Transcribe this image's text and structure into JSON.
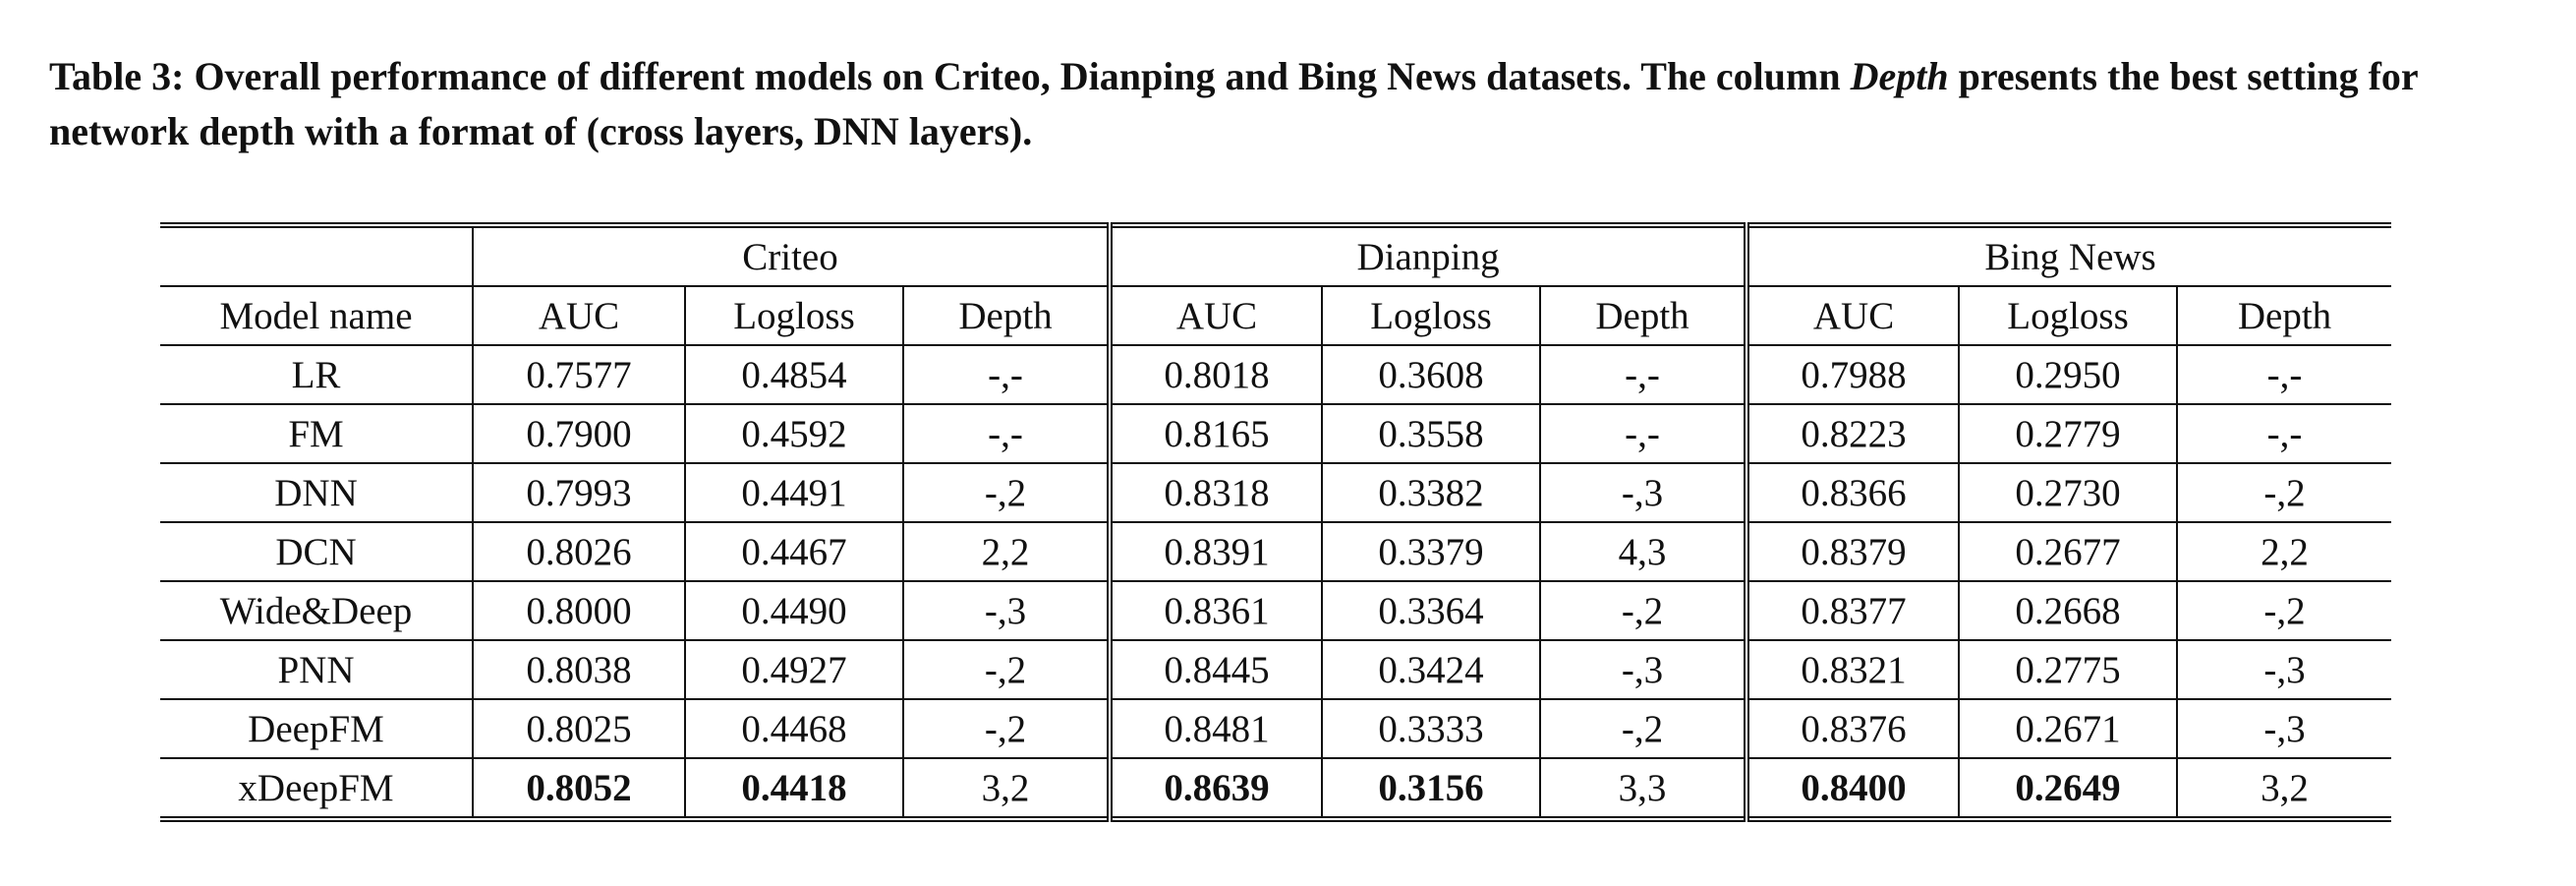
{
  "caption": {
    "prefix": "Table 3: Overall performance of different models on Criteo, Dianping and Bing News datasets. The column ",
    "emph": "Depth",
    "suffix": " presents the best setting for network depth with a format of (cross layers, DNN layers)."
  },
  "table": {
    "datasets": [
      "Criteo",
      "Dianping",
      "Bing News"
    ],
    "model_header": "Model name",
    "metric_headers": [
      "AUC",
      "Logloss",
      "Depth"
    ],
    "rows": [
      {
        "model": "LR",
        "criteo": [
          "0.7577",
          "0.4854",
          "-,-"
        ],
        "dianping": [
          "0.8018",
          "0.3608",
          "-,-"
        ],
        "bing": [
          "0.7988",
          "0.2950",
          "-,-"
        ]
      },
      {
        "model": "FM",
        "criteo": [
          "0.7900",
          "0.4592",
          "-,-"
        ],
        "dianping": [
          "0.8165",
          "0.3558",
          "-,-"
        ],
        "bing": [
          "0.8223",
          "0.2779",
          "-,-"
        ]
      },
      {
        "model": "DNN",
        "criteo": [
          "0.7993",
          "0.4491",
          "-,2"
        ],
        "dianping": [
          "0.8318",
          "0.3382",
          "-,3"
        ],
        "bing": [
          "0.8366",
          "0.2730",
          "-,2"
        ]
      },
      {
        "model": "DCN",
        "criteo": [
          "0.8026",
          "0.4467",
          "2,2"
        ],
        "dianping": [
          "0.8391",
          "0.3379",
          "4,3"
        ],
        "bing": [
          "0.8379",
          "0.2677",
          "2,2"
        ]
      },
      {
        "model": "Wide&Deep",
        "criteo": [
          "0.8000",
          "0.4490",
          "-,3"
        ],
        "dianping": [
          "0.8361",
          "0.3364",
          "-,2"
        ],
        "bing": [
          "0.8377",
          "0.2668",
          "-,2"
        ]
      },
      {
        "model": "PNN",
        "criteo": [
          "0.8038",
          "0.4927",
          "-,2"
        ],
        "dianping": [
          "0.8445",
          "0.3424",
          "-,3"
        ],
        "bing": [
          "0.8321",
          "0.2775",
          "-,3"
        ]
      },
      {
        "model": "DeepFM",
        "criteo": [
          "0.8025",
          "0.4468",
          "-,2"
        ],
        "dianping": [
          "0.8481",
          "0.3333",
          "-,2"
        ],
        "bing": [
          "0.8376",
          "0.2671",
          "-,3"
        ]
      },
      {
        "model": "xDeepFM",
        "criteo": [
          "0.8052",
          "0.4418",
          "3,2"
        ],
        "dianping": [
          "0.8639",
          "0.3156",
          "3,3"
        ],
        "bing": [
          "0.8400",
          "0.2649",
          "3,2"
        ],
        "bold_metrics": true
      }
    ]
  }
}
